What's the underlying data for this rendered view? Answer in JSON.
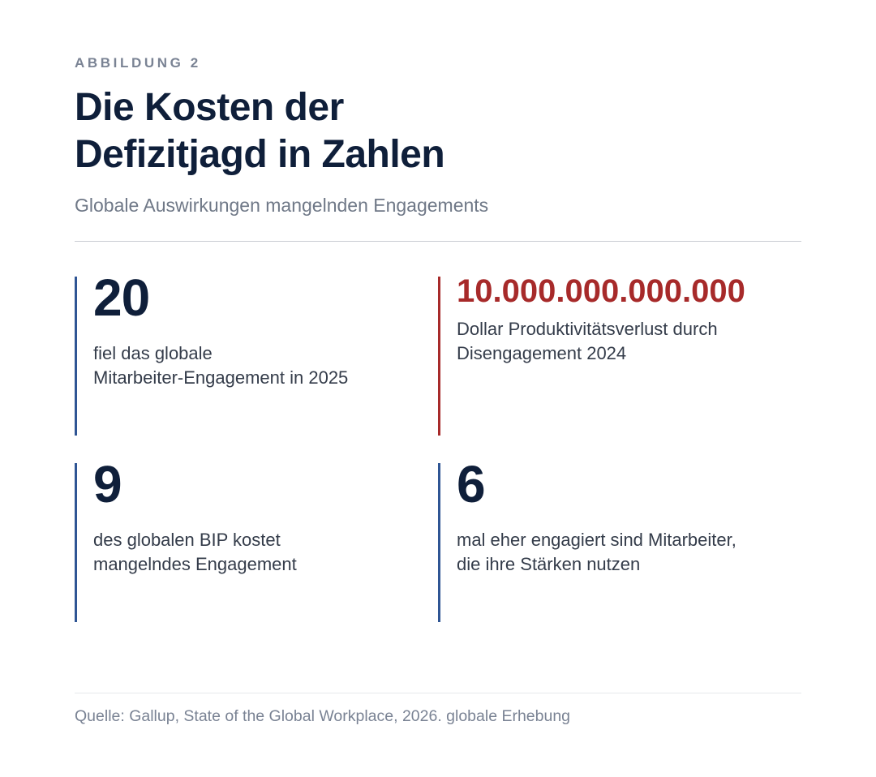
{
  "figure": {
    "eyebrow": "ABBILDUNG 2",
    "title_line1": "Die Kosten der",
    "title_line2": "Defizitjagd in Zahlen",
    "subtitle": "Globale Auswirkungen mangelnden Engagements"
  },
  "stats": [
    {
      "value": "20",
      "desc_line1": "fiel das globale",
      "desc_line2": "Mitarbeiter-Engagement in 2025",
      "accent": "#2f5594"
    },
    {
      "value": "10.000.000.000.000",
      "desc_line1": "Dollar Produktivitätsverlust durch",
      "desc_line2": "Disengagement 2024",
      "accent": "#a72a2a"
    },
    {
      "value": "9",
      "desc_line1": "des globalen BIP kostet",
      "desc_line2": "mangelndes Engagement",
      "accent": "#2f5594"
    },
    {
      "value": "6",
      "desc_line1": "mal eher engagiert sind Mitarbeiter,",
      "desc_line2": "die ihre Stärken nutzen",
      "accent": "#2f5594"
    }
  ],
  "source": "Quelle: Gallup, State of the Global Workplace, 2026. globale Erhebung"
}
